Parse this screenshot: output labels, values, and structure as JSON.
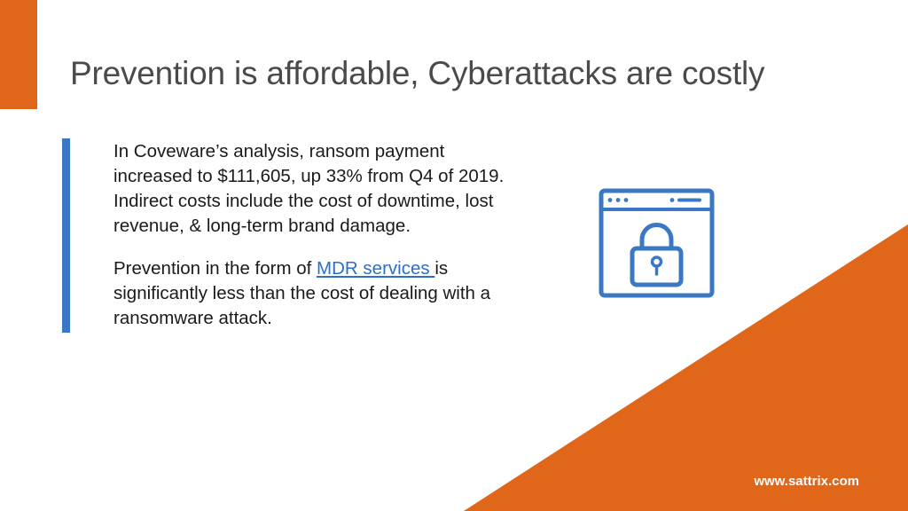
{
  "slide": {
    "title": "Prevention is affordable, Cyberattacks are costly",
    "paragraph1": "In Coveware’s analysis, ransom payment increased to $111,605, up 33% from Q4 of 2019. Indirect costs include the cost of downtime, lost revenue, & long-term brand damage.",
    "paragraph2_before": "Prevention in the form of ",
    "paragraph2_link": "MDR services ",
    "paragraph2_after": "is significantly less than the cost of dealing with a ransomware attack.",
    "footer_url": "www.sattrix.com",
    "icon": "browser-lock-icon"
  },
  "colors": {
    "accent_orange": "#e0661a",
    "accent_blue": "#3b78c3",
    "link_blue": "#2a6fc9",
    "title_gray": "#4a4a4a"
  }
}
